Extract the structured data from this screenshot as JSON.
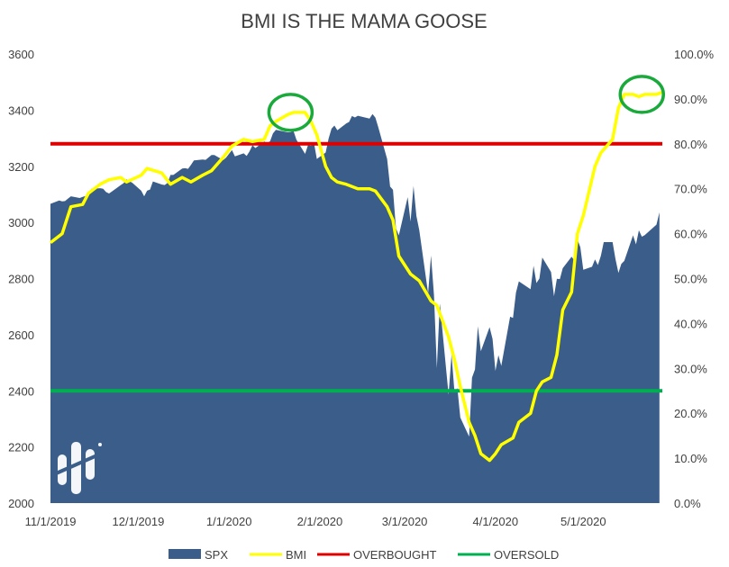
{
  "chart_data": {
    "type": "area",
    "title": "BMI IS THE MAMA GOOSE",
    "x_tick_labels": [
      "11/1/2019",
      "12/1/2019",
      "1/1/2020",
      "2/1/2020",
      "3/1/2020",
      "4/1/2020",
      "5/1/2020"
    ],
    "y_left": {
      "ticks": [
        "2000",
        "2200",
        "2400",
        "2600",
        "2800",
        "3000",
        "3200",
        "3400",
        "3600"
      ],
      "range": [
        2000,
        3600
      ]
    },
    "y_right": {
      "ticks": [
        "0.0%",
        "10.0%",
        "20.0%",
        "30.0%",
        "40.0%",
        "50.0%",
        "60.0%",
        "70.0%",
        "80.0%",
        "90.0%",
        "100.0%"
      ],
      "range": [
        0,
        100
      ]
    },
    "grid": false,
    "legend_position": "bottom",
    "colors": {
      "spx": "#3a5d8a",
      "bmi": "#ffff00",
      "overbought": "#e00000",
      "oversold": "#00b050",
      "circle": "#1aaa3c"
    },
    "series": [
      {
        "name": "SPX",
        "axis": "left",
        "style": "area",
        "points": [
          [
            "2019-11-01",
            3066
          ],
          [
            "2019-11-04",
            3078
          ],
          [
            "2019-11-05",
            3075
          ],
          [
            "2019-11-06",
            3076
          ],
          [
            "2019-11-07",
            3085
          ],
          [
            "2019-11-08",
            3093
          ],
          [
            "2019-11-11",
            3087
          ],
          [
            "2019-11-12",
            3091
          ],
          [
            "2019-11-13",
            3094
          ],
          [
            "2019-11-14",
            3096
          ],
          [
            "2019-11-15",
            3120
          ],
          [
            "2019-11-18",
            3122
          ],
          [
            "2019-11-19",
            3120
          ],
          [
            "2019-11-20",
            3108
          ],
          [
            "2019-11-21",
            3103
          ],
          [
            "2019-11-22",
            3110
          ],
          [
            "2019-11-25",
            3133
          ],
          [
            "2019-11-26",
            3140
          ],
          [
            "2019-11-27",
            3153
          ],
          [
            "2019-11-29",
            3141
          ],
          [
            "2019-12-02",
            3113
          ],
          [
            "2019-12-03",
            3093
          ],
          [
            "2019-12-04",
            3113
          ],
          [
            "2019-12-05",
            3117
          ],
          [
            "2019-12-06",
            3146
          ],
          [
            "2019-12-09",
            3135
          ],
          [
            "2019-12-10",
            3133
          ],
          [
            "2019-12-11",
            3141
          ],
          [
            "2019-12-12",
            3169
          ],
          [
            "2019-12-13",
            3169
          ],
          [
            "2019-12-16",
            3192
          ],
          [
            "2019-12-17",
            3193
          ],
          [
            "2019-12-18",
            3191
          ],
          [
            "2019-12-19",
            3205
          ],
          [
            "2019-12-20",
            3221
          ],
          [
            "2019-12-23",
            3224
          ],
          [
            "2019-12-24",
            3223
          ],
          [
            "2019-12-26",
            3240
          ],
          [
            "2019-12-27",
            3240
          ],
          [
            "2019-12-30",
            3222
          ],
          [
            "2019-12-31",
            3231
          ],
          [
            "2020-01-02",
            3258
          ],
          [
            "2020-01-03",
            3235
          ],
          [
            "2020-01-06",
            3246
          ],
          [
            "2020-01-07",
            3237
          ],
          [
            "2020-01-08",
            3253
          ],
          [
            "2020-01-09",
            3275
          ],
          [
            "2020-01-10",
            3265
          ],
          [
            "2020-01-13",
            3288
          ],
          [
            "2020-01-14",
            3283
          ],
          [
            "2020-01-15",
            3289
          ],
          [
            "2020-01-16",
            3317
          ],
          [
            "2020-01-17",
            3330
          ],
          [
            "2020-01-21",
            3321
          ],
          [
            "2020-01-22",
            3321
          ],
          [
            "2020-01-23",
            3326
          ],
          [
            "2020-01-24",
            3295
          ],
          [
            "2020-01-27",
            3244
          ],
          [
            "2020-01-28",
            3276
          ],
          [
            "2020-01-29",
            3273
          ],
          [
            "2020-01-30",
            3284
          ],
          [
            "2020-01-31",
            3226
          ],
          [
            "2020-02-03",
            3249
          ],
          [
            "2020-02-04",
            3298
          ],
          [
            "2020-02-05",
            3334
          ],
          [
            "2020-02-06",
            3345
          ],
          [
            "2020-02-07",
            3328
          ],
          [
            "2020-02-10",
            3352
          ],
          [
            "2020-02-11",
            3358
          ],
          [
            "2020-02-12",
            3379
          ],
          [
            "2020-02-13",
            3374
          ],
          [
            "2020-02-14",
            3380
          ],
          [
            "2020-02-18",
            3370
          ],
          [
            "2020-02-19",
            3386
          ],
          [
            "2020-02-20",
            3373
          ],
          [
            "2020-02-21",
            3338
          ],
          [
            "2020-02-24",
            3226
          ],
          [
            "2020-02-25",
            3128
          ],
          [
            "2020-02-26",
            3116
          ],
          [
            "2020-02-27",
            2979
          ],
          [
            "2020-02-28",
            2954
          ],
          [
            "2020-03-02",
            3090
          ],
          [
            "2020-03-03",
            3003
          ],
          [
            "2020-03-04",
            3130
          ],
          [
            "2020-03-05",
            3023
          ],
          [
            "2020-03-06",
            2972
          ],
          [
            "2020-03-09",
            2747
          ],
          [
            "2020-03-10",
            2882
          ],
          [
            "2020-03-11",
            2741
          ],
          [
            "2020-03-12",
            2481
          ],
          [
            "2020-03-13",
            2711
          ],
          [
            "2020-03-16",
            2386
          ],
          [
            "2020-03-17",
            2529
          ],
          [
            "2020-03-18",
            2398
          ],
          [
            "2020-03-19",
            2409
          ],
          [
            "2020-03-20",
            2305
          ],
          [
            "2020-03-23",
            2237
          ],
          [
            "2020-03-24",
            2447
          ],
          [
            "2020-03-25",
            2476
          ],
          [
            "2020-03-26",
            2630
          ],
          [
            "2020-03-27",
            2541
          ],
          [
            "2020-03-30",
            2627
          ],
          [
            "2020-03-31",
            2585
          ],
          [
            "2020-04-01",
            2471
          ],
          [
            "2020-04-02",
            2527
          ],
          [
            "2020-04-03",
            2489
          ],
          [
            "2020-04-06",
            2664
          ],
          [
            "2020-04-07",
            2660
          ],
          [
            "2020-04-08",
            2750
          ],
          [
            "2020-04-09",
            2790
          ],
          [
            "2020-04-13",
            2762
          ],
          [
            "2020-04-14",
            2846
          ],
          [
            "2020-04-15",
            2784
          ],
          [
            "2020-04-16",
            2800
          ],
          [
            "2020-04-17",
            2875
          ],
          [
            "2020-04-20",
            2823
          ],
          [
            "2020-04-21",
            2737
          ],
          [
            "2020-04-22",
            2799
          ],
          [
            "2020-04-23",
            2798
          ],
          [
            "2020-04-24",
            2837
          ],
          [
            "2020-04-27",
            2878
          ],
          [
            "2020-04-28",
            2864
          ],
          [
            "2020-04-29",
            2939
          ],
          [
            "2020-04-30",
            2912
          ],
          [
            "2020-05-01",
            2831
          ],
          [
            "2020-05-04",
            2842
          ],
          [
            "2020-05-05",
            2868
          ],
          [
            "2020-05-06",
            2848
          ],
          [
            "2020-05-07",
            2881
          ],
          [
            "2020-05-08",
            2930
          ],
          [
            "2020-05-11",
            2930
          ],
          [
            "2020-05-12",
            2870
          ],
          [
            "2020-05-13",
            2820
          ],
          [
            "2020-05-14",
            2852
          ],
          [
            "2020-05-15",
            2863
          ],
          [
            "2020-05-18",
            2954
          ],
          [
            "2020-05-19",
            2922
          ],
          [
            "2020-05-20",
            2972
          ],
          [
            "2020-05-21",
            2949
          ],
          [
            "2020-05-22",
            2955
          ],
          [
            "2020-05-26",
            2992
          ],
          [
            "2020-05-27",
            3036
          ]
        ]
      },
      {
        "name": "BMI",
        "axis": "right",
        "style": "line",
        "points": [
          [
            "2019-11-01",
            58
          ],
          [
            "2019-11-05",
            60
          ],
          [
            "2019-11-08",
            66
          ],
          [
            "2019-11-12",
            66.5
          ],
          [
            "2019-11-14",
            69
          ],
          [
            "2019-11-18",
            71
          ],
          [
            "2019-11-21",
            72
          ],
          [
            "2019-11-25",
            72.5
          ],
          [
            "2019-11-27",
            71.5
          ],
          [
            "2019-12-02",
            73
          ],
          [
            "2019-12-04",
            74.5
          ],
          [
            "2019-12-09",
            73.5
          ],
          [
            "2019-12-12",
            71
          ],
          [
            "2019-12-16",
            72.5
          ],
          [
            "2019-12-19",
            71.5
          ],
          [
            "2019-12-23",
            73
          ],
          [
            "2019-12-26",
            74
          ],
          [
            "2019-12-30",
            77
          ],
          [
            "2020-01-02",
            79.5
          ],
          [
            "2020-01-06",
            81
          ],
          [
            "2020-01-09",
            80.5
          ],
          [
            "2020-01-13",
            81
          ],
          [
            "2020-01-15",
            84
          ],
          [
            "2020-01-17",
            85
          ],
          [
            "2020-01-21",
            86.5
          ],
          [
            "2020-01-23",
            87
          ],
          [
            "2020-01-27",
            87
          ],
          [
            "2020-01-29",
            85
          ],
          [
            "2020-01-31",
            82
          ],
          [
            "2020-02-03",
            75
          ],
          [
            "2020-02-05",
            72.5
          ],
          [
            "2020-02-07",
            71.5
          ],
          [
            "2020-02-10",
            71
          ],
          [
            "2020-02-12",
            70.5
          ],
          [
            "2020-02-14",
            70
          ],
          [
            "2020-02-18",
            70
          ],
          [
            "2020-02-20",
            69.5
          ],
          [
            "2020-02-24",
            66
          ],
          [
            "2020-02-26",
            63
          ],
          [
            "2020-02-28",
            55
          ],
          [
            "2020-03-03",
            51
          ],
          [
            "2020-03-06",
            49.5
          ],
          [
            "2020-03-10",
            45
          ],
          [
            "2020-03-12",
            44
          ],
          [
            "2020-03-16",
            37
          ],
          [
            "2020-03-18",
            32
          ],
          [
            "2020-03-20",
            26
          ],
          [
            "2020-03-23",
            18
          ],
          [
            "2020-03-25",
            15
          ],
          [
            "2020-03-27",
            11
          ],
          [
            "2020-03-30",
            9.5
          ],
          [
            "2020-04-01",
            11
          ],
          [
            "2020-04-03",
            13
          ],
          [
            "2020-04-07",
            14.5
          ],
          [
            "2020-04-09",
            18
          ],
          [
            "2020-04-13",
            20
          ],
          [
            "2020-04-15",
            25
          ],
          [
            "2020-04-17",
            27
          ],
          [
            "2020-04-20",
            28
          ],
          [
            "2020-04-22",
            33
          ],
          [
            "2020-04-24",
            43
          ],
          [
            "2020-04-27",
            47
          ],
          [
            "2020-04-29",
            60
          ],
          [
            "2020-05-01",
            64
          ],
          [
            "2020-05-05",
            75
          ],
          [
            "2020-05-07",
            78
          ],
          [
            "2020-05-11",
            81
          ],
          [
            "2020-05-13",
            88
          ],
          [
            "2020-05-15",
            91
          ],
          [
            "2020-05-18",
            91
          ],
          [
            "2020-05-20",
            90.5
          ],
          [
            "2020-05-22",
            91
          ],
          [
            "2020-05-26",
            91
          ],
          [
            "2020-05-28",
            91.5
          ]
        ]
      },
      {
        "name": "OVERBOUGHT",
        "axis": "right",
        "style": "hline",
        "value": 80
      },
      {
        "name": "OVERSOLD",
        "axis": "right",
        "style": "hline",
        "value": 25
      }
    ],
    "annotations": [
      {
        "type": "circle",
        "date": "2020-01-22",
        "value_right": 87
      },
      {
        "type": "circle",
        "date": "2020-05-21",
        "value_right": 91
      }
    ]
  }
}
